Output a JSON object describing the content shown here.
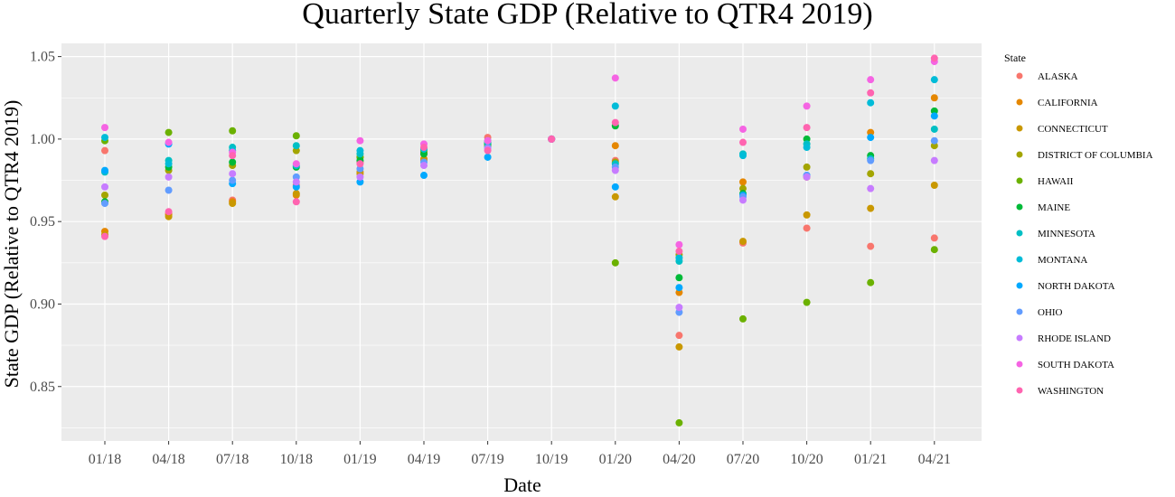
{
  "chart_data": {
    "type": "scatter",
    "title": "Quarterly State GDP (Relative to QTR4 2019)",
    "xlabel": "Date",
    "ylabel": "State GDP (Relative to QTR4 2019)",
    "categories": [
      "01/18",
      "04/18",
      "07/18",
      "10/18",
      "01/19",
      "04/19",
      "07/19",
      "10/19",
      "01/20",
      "04/20",
      "07/20",
      "10/20",
      "01/21",
      "04/21"
    ],
    "ylim": [
      0.817,
      1.058
    ],
    "yticks": [
      0.85,
      0.9,
      0.95,
      1.0,
      1.05
    ],
    "ytick_labels": [
      "0.85",
      "0.90",
      "0.95",
      "1.00",
      "1.05"
    ],
    "grid": true,
    "legend": {
      "title": "State",
      "position": "right"
    },
    "series": [
      {
        "name": "ALASKA",
        "color": "#F8766D",
        "values": [
          0.993,
          0.955,
          0.963,
          0.972,
          0.986,
          0.991,
          1.001,
          1.0,
          0.987,
          0.881,
          0.937,
          0.946,
          0.935,
          0.94
        ]
      },
      {
        "name": "CALIFORNIA",
        "color": "#E58700",
        "values": [
          0.944,
          0.954,
          0.962,
          0.966,
          0.98,
          0.988,
          0.998,
          1.0,
          0.996,
          0.907,
          0.974,
          0.977,
          1.004,
          1.025
        ]
      },
      {
        "name": "CONNECTICUT",
        "color": "#C99800",
        "values": [
          0.942,
          0.953,
          0.961,
          0.967,
          0.979,
          0.987,
          0.996,
          1.0,
          0.965,
          0.874,
          0.938,
          0.954,
          0.958,
          0.972
        ]
      },
      {
        "name": "DISTRICT OF COLUMBIA",
        "color": "#A3A500",
        "values": [
          0.966,
          0.981,
          0.984,
          0.993,
          0.989,
          0.992,
          0.996,
          1.0,
          0.986,
          0.93,
          0.97,
          0.983,
          0.979,
          0.996
        ]
      },
      {
        "name": "HAWAII",
        "color": "#6BB100",
        "values": [
          0.999,
          1.004,
          1.005,
          1.002,
          0.989,
          0.993,
          0.997,
          1.0,
          0.925,
          0.828,
          0.891,
          0.901,
          0.913,
          0.933
        ]
      },
      {
        "name": "MAINE",
        "color": "#00BA38",
        "values": [
          0.962,
          0.983,
          0.986,
          0.983,
          0.987,
          0.991,
          0.997,
          1.0,
          1.008,
          0.916,
          0.967,
          1.0,
          0.99,
          1.017
        ]
      },
      {
        "name": "MINNESOTA",
        "color": "#00BFC4",
        "values": [
          0.98,
          0.987,
          0.995,
          0.996,
          0.991,
          0.994,
          0.998,
          1.0,
          0.985,
          0.926,
          0.991,
          0.997,
          0.988,
          1.006
        ]
      },
      {
        "name": "MONTANA",
        "color": "#00BCD8",
        "values": [
          1.001,
          0.985,
          0.993,
          0.984,
          0.993,
          0.994,
          0.999,
          1.0,
          1.02,
          0.928,
          0.99,
          0.995,
          1.022,
          1.036
        ]
      },
      {
        "name": "NORTH DAKOTA",
        "color": "#00A9FF",
        "values": [
          0.981,
          0.997,
          0.973,
          0.971,
          0.974,
          0.978,
          0.989,
          1.0,
          0.971,
          0.91,
          0.966,
          0.978,
          1.001,
          1.014
        ]
      },
      {
        "name": "OHIO",
        "color": "#619CFF",
        "values": [
          0.961,
          0.969,
          0.975,
          0.977,
          0.982,
          0.986,
          0.995,
          1.0,
          0.983,
          0.895,
          0.965,
          0.978,
          0.987,
          0.999
        ]
      },
      {
        "name": "RHODE ISLAND",
        "color": "#C77CFF",
        "values": [
          0.971,
          0.977,
          0.979,
          0.974,
          0.977,
          0.984,
          0.994,
          1.0,
          0.981,
          0.898,
          0.963,
          0.977,
          0.97,
          0.987
        ]
      },
      {
        "name": "SOUTH DAKOTA",
        "color": "#F564E3",
        "values": [
          1.007,
          0.998,
          0.992,
          0.985,
          0.999,
          0.997,
          0.999,
          1.0,
          1.037,
          0.936,
          1.006,
          1.02,
          1.036,
          1.047
        ]
      },
      {
        "name": "WASHINGTON",
        "color": "#FF64B0",
        "values": [
          0.941,
          0.956,
          0.99,
          0.962,
          0.985,
          0.995,
          0.993,
          1.0,
          1.01,
          0.932,
          0.998,
          1.007,
          1.028,
          1.049
        ]
      }
    ]
  }
}
